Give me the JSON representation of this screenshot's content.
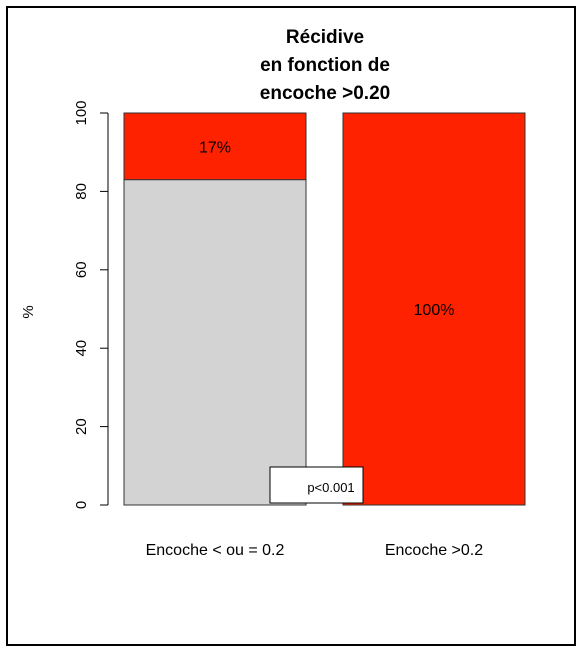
{
  "chart_data": {
    "type": "bar",
    "stacked": true,
    "title_lines": [
      "Récidive",
      "en fonction de",
      "encoche >0.20"
    ],
    "ylabel": "%",
    "ylim": [
      0,
      100
    ],
    "yticks": [
      0,
      20,
      40,
      60,
      80,
      100
    ],
    "categories": [
      "Encoche < ou = 0.2",
      "Encoche >0.2"
    ],
    "series": [
      {
        "values": [
          83,
          0
        ],
        "color": "#d3d3d3"
      },
      {
        "values": [
          17,
          100
        ],
        "color": "#ff2200"
      }
    ],
    "data_labels": [
      "17%",
      "100%"
    ],
    "annotation": "p<0.001"
  }
}
